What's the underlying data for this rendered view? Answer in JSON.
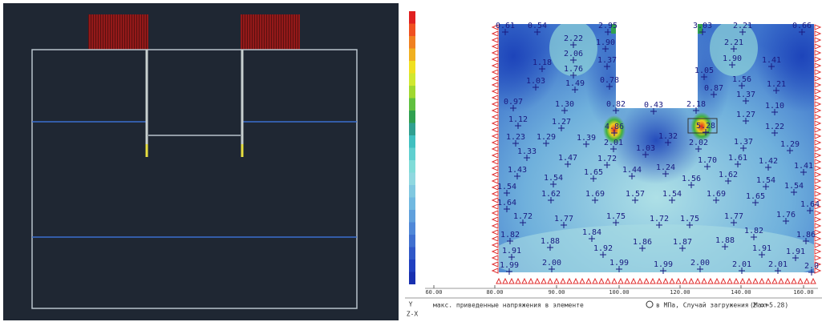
{
  "plot": {
    "labels": [
      "0.61",
      "0.54",
      "2.95",
      "3.03",
      "2.21",
      "0.66",
      "2.22",
      "1.90",
      "2.21",
      "2.06",
      "1.37",
      "1.90",
      "1.41",
      "1.18",
      "1.76",
      "1.05",
      "1.03",
      "1.49",
      "0.78",
      "1.56",
      "1.21",
      "0.87",
      "1.37",
      "0.97",
      "1.30",
      "0.82",
      "0.43",
      "2.18",
      "1.10",
      "1.27",
      "1.12",
      "1.27",
      "4.86",
      "5.28",
      "1.22",
      "1.23",
      "1.29",
      "1.39",
      "2.01",
      "1.32",
      "2.02",
      "1.37",
      "1.29",
      "1.33",
      "1.03",
      "1.47",
      "1.72",
      "1.70",
      "1.61",
      "1.42",
      "1.41",
      "1.43",
      "1.65",
      "1.44",
      "1.24",
      "1.56",
      "1.62",
      "1.54",
      "1.54",
      "1.54",
      "1.54",
      "1.62",
      "1.69",
      "1.57",
      "1.54",
      "1.69",
      "1.65",
      "1.64",
      "1.64",
      "1.72",
      "1.77",
      "1.75",
      "1.72",
      "1.75",
      "1.77",
      "1.76",
      "1.82",
      "1.84",
      "1.82",
      "1.86",
      "1.88",
      "1.92",
      "1.86",
      "1.87",
      "1.88",
      "1.91",
      "1.91",
      "1.91",
      "1.99",
      "2.00",
      "1.99",
      "1.99",
      "2.00",
      "2.01",
      "2.01",
      "2.0"
    ],
    "axis_ticks": [
      "60.00",
      "80.00",
      "90.00",
      "100.00",
      "120.00",
      "140.00",
      "160.00"
    ]
  },
  "status": {
    "axis_y": "Y",
    "axis_zx": "Z-X",
    "caption": "макс. приведенные напряжения в элементе",
    "units": "в МПа, Случай загружения 2  от",
    "max": "(Max=5.28)"
  }
}
